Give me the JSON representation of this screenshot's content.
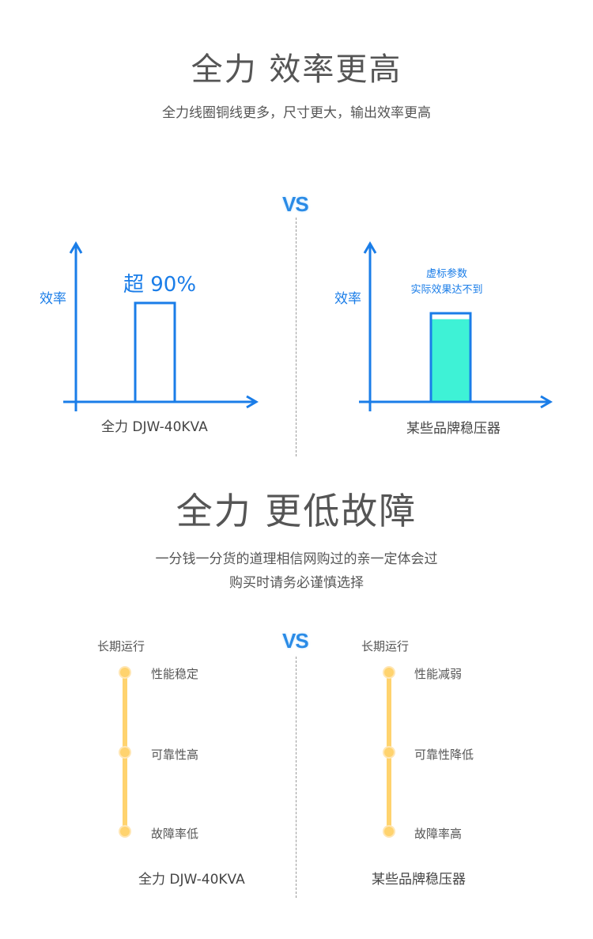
{
  "section1": {
    "title": "全力 效率更高",
    "subtitle": "全力线圈铜线更多，尺寸更大，输出效率更高",
    "vs": "VS",
    "left": {
      "ylabel": "效率",
      "bar_label": "超 90%",
      "caption": "全力 DJW-40KVA"
    },
    "right": {
      "ylabel": "效率",
      "note_line1": "虚标参数",
      "note_line2": "实际效果达不到",
      "caption": "某些品牌稳压器"
    },
    "colors": {
      "accent": "#1a7de8",
      "fill": "#3ef2d6"
    }
  },
  "section2": {
    "title": "全力 更低故障",
    "subtitle_line1": "一分钱一分货的道理相信网购过的亲一定体会过",
    "subtitle_line2": "购买时请务必谨慎选择",
    "vs": "VS",
    "left": {
      "header": "长期运行",
      "items": [
        "性能稳定",
        "可靠性高",
        "故障率低"
      ],
      "caption": "全力 DJW-40KVA"
    },
    "right": {
      "header": "长期运行",
      "items": [
        "性能减弱",
        "可靠性降低",
        "故障率高"
      ],
      "caption": "某些品牌稳压器"
    },
    "colors": {
      "timeline": "#ffd36e"
    }
  }
}
